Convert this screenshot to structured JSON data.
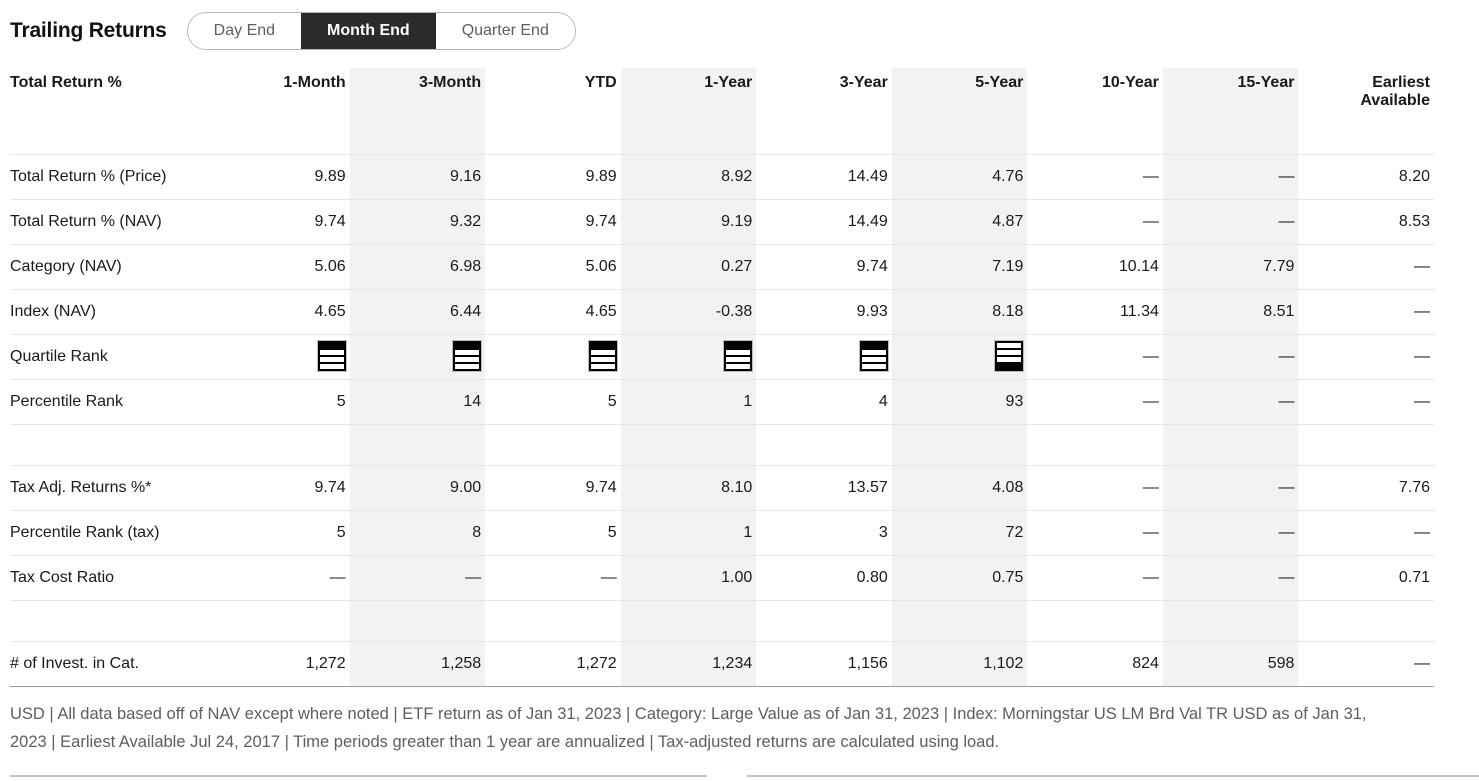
{
  "header": {
    "title": "Trailing Returns",
    "tabs": [
      {
        "label": "Day End",
        "selected": false
      },
      {
        "label": "Month End",
        "selected": true
      },
      {
        "label": "Quarter End",
        "selected": false
      }
    ]
  },
  "table": {
    "first_column_header": "Total Return %",
    "columns": [
      "1-Month",
      "3-Month",
      "YTD",
      "1-Year",
      "3-Year",
      "5-Year",
      "10-Year",
      "15-Year",
      "Earliest Available"
    ],
    "shaded_columns": [
      1,
      3,
      5,
      7
    ],
    "rows": [
      {
        "label": "Total Return % (Price)",
        "type": "values",
        "values": [
          "9.89",
          "9.16",
          "9.89",
          "8.92",
          "14.49",
          "4.76",
          "—",
          "—",
          "8.20"
        ]
      },
      {
        "label": "Total Return % (NAV)",
        "type": "values",
        "values": [
          "9.74",
          "9.32",
          "9.74",
          "9.19",
          "14.49",
          "4.87",
          "—",
          "—",
          "8.53"
        ]
      },
      {
        "label": "Category (NAV)",
        "type": "values",
        "values": [
          "5.06",
          "6.98",
          "5.06",
          "0.27",
          "9.74",
          "7.19",
          "10.14",
          "7.79",
          "—"
        ]
      },
      {
        "label": "Index (NAV)",
        "type": "values",
        "values": [
          "4.65",
          "6.44",
          "4.65",
          "-0.38",
          "9.93",
          "8.18",
          "11.34",
          "8.51",
          "—"
        ]
      },
      {
        "label": "Quartile Rank",
        "type": "quartile",
        "values": [
          1,
          1,
          1,
          1,
          1,
          4,
          "—",
          "—",
          "—"
        ]
      },
      {
        "label": "Percentile Rank",
        "type": "values",
        "section_end": true,
        "values": [
          "5",
          "14",
          "5",
          "1",
          "4",
          "93",
          "—",
          "—",
          "—"
        ]
      },
      {
        "type": "spacer"
      },
      {
        "label": "Tax Adj. Returns %*",
        "type": "values",
        "values": [
          "9.74",
          "9.00",
          "9.74",
          "8.10",
          "13.57",
          "4.08",
          "—",
          "—",
          "7.76"
        ]
      },
      {
        "label": "Percentile Rank (tax)",
        "type": "values",
        "values": [
          "5",
          "8",
          "5",
          "1",
          "3",
          "72",
          "—",
          "—",
          "—"
        ]
      },
      {
        "label": "Tax Cost Ratio",
        "type": "values",
        "section_end": true,
        "values": [
          "—",
          "—",
          "—",
          "1.00",
          "0.80",
          "0.75",
          "—",
          "—",
          "0.71"
        ]
      },
      {
        "type": "spacer"
      },
      {
        "label": "# of Invest. in Cat.",
        "type": "values",
        "last": true,
        "values": [
          "1,272",
          "1,258",
          "1,272",
          "1,234",
          "1,156",
          "1,102",
          "824",
          "598",
          "—"
        ]
      }
    ]
  },
  "footnote": "USD | All data based off of NAV except where noted | ETF return as of Jan 31, 2023 |  Category: Large Value as of Jan 31, 2023 |  Index: Morningstar US LM Brd Val TR USD as of Jan 31, 2023 |  Earliest Available Jul 24, 2017 |  Time periods greater than 1 year are annualized  | Tax-adjusted returns are calculated using load.",
  "colors": {
    "selected_tab_bg": "#2b2b2b",
    "shaded_column": "#f2f2f2",
    "row_border": "#e7e7e7",
    "last_row_border": "#9a9a9a",
    "footnote_text": "#5e5e5e"
  }
}
